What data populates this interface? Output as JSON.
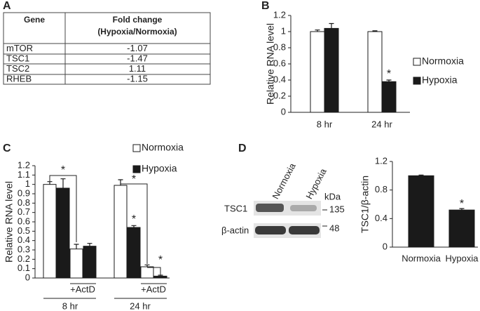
{
  "panel_labels": [
    "A",
    "B",
    "C",
    "D"
  ],
  "table": {
    "header": [
      "Gene",
      [
        "Fold change",
        "(Hypoxia/Normoxia)"
      ]
    ],
    "rows": [
      [
        "mTOR",
        -1.07
      ],
      [
        "TSC1",
        -1.47
      ],
      [
        "TSC2",
        1.11
      ],
      [
        "RHEB",
        -1.15
      ]
    ]
  },
  "blot": {
    "lanes": [
      "Normoxia",
      "Hypoxia"
    ],
    "unit": "kDa",
    "rows": [
      "TSC1",
      "β-actin"
    ],
    "markers": [
      135,
      48
    ]
  },
  "chart_data": [
    {
      "type": "bar",
      "y_label": "Relative RNA level",
      "categories": [
        "8 hr",
        "24 hr"
      ],
      "series": [
        {
          "name": "Normoxia",
          "color": "#ffffff",
          "values": [
            1.0,
            1.0
          ],
          "errors": [
            0.02,
            0.01
          ]
        },
        {
          "name": "Hypoxia",
          "color": "#1a1a1a",
          "values": [
            1.04,
            0.38
          ],
          "errors": [
            0.06,
            0.02
          ]
        }
      ],
      "ylim": [
        0,
        1.2
      ],
      "yticks": [
        0,
        0.2,
        0.4,
        0.6,
        0.8,
        1,
        1.2
      ],
      "annotations": [
        "*"
      ],
      "legend": "right"
    },
    {
      "type": "bar",
      "y_label": "Relative RNA level",
      "categories": [
        null,
        "+ActD",
        null,
        "+ActD"
      ],
      "groups": [
        "8 hr",
        "24 hr"
      ],
      "series": [
        {
          "name": "Normoxia",
          "color": "#ffffff",
          "values": [
            1.0,
            0.31,
            0.99,
            0.12
          ],
          "errors": [
            0.03,
            0.05,
            0.06,
            0.02
          ]
        },
        {
          "name": "Hypoxia",
          "color": "#1a1a1a",
          "values": [
            0.96,
            0.34,
            0.54,
            0.02
          ],
          "errors": [
            0.1,
            0.03,
            0.02,
            0.01
          ]
        }
      ],
      "ylim": [
        0,
        1.2
      ],
      "yticks": [
        0,
        0.1,
        0.2,
        0.3,
        0.4,
        0.5,
        0.6,
        0.7,
        0.8,
        0.9,
        1,
        1.1,
        1.2
      ],
      "annotations": [
        "*",
        "*",
        "*",
        "*"
      ],
      "legend": "top"
    },
    {
      "type": "bar",
      "y_label": "TSC1/β-actin",
      "categories": [
        "Normoxia",
        "Hypoxia"
      ],
      "values": [
        1.0,
        0.52
      ],
      "errors": [
        0.01,
        0.02
      ],
      "color": "#1a1a1a",
      "ylim": [
        0,
        1.2
      ],
      "yticks": [
        0,
        0.4,
        0.8,
        1.2
      ],
      "annotations": [
        "*"
      ]
    }
  ]
}
